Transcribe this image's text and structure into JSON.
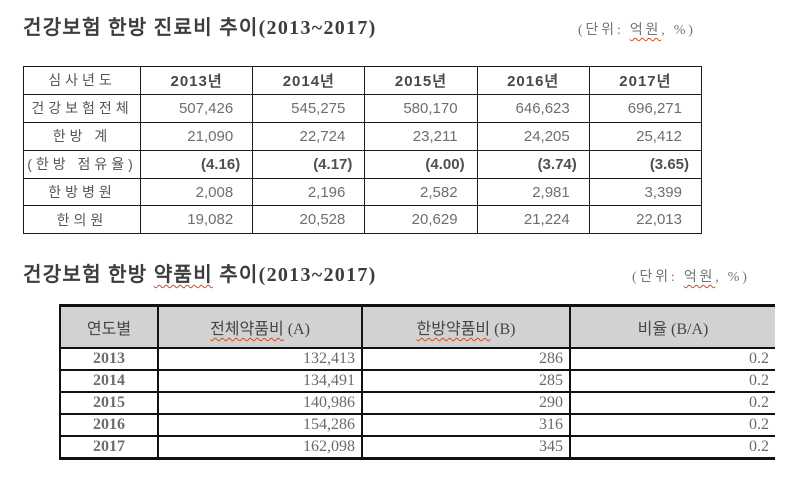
{
  "section1": {
    "title": "건강보험 한방 진료비 추이(2013~2017)",
    "unit_note": {
      "pre": "(단위: ",
      "wavy": "억원",
      "post": ", %)"
    }
  },
  "section2": {
    "title": {
      "pre": "건강보험 한방 ",
      "wavy": "약품비",
      "post": " 추이(2013~2017)"
    },
    "unit_note": {
      "pre": "(단위: ",
      "wavy": "억원",
      "post": ", %)"
    }
  },
  "table1": {
    "header": [
      "심사년도",
      "2013년",
      "2014년",
      "2015년",
      "2016년",
      "2017년"
    ],
    "rows": [
      {
        "label": "건강보험전체",
        "bold": false,
        "values": [
          "507,426",
          "545,275",
          "580,170",
          "646,623",
          "696,271"
        ]
      },
      {
        "label": "한방 계",
        "bold": false,
        "values": [
          "21,090",
          "22,724",
          "23,211",
          "24,205",
          "25,412"
        ]
      },
      {
        "label": "(한방 점유율)",
        "bold": true,
        "values": [
          "(4.16)",
          "(4.17)",
          "(4.00)",
          "(3.74)",
          "(3.65)"
        ]
      },
      {
        "label": "한방병원",
        "bold": false,
        "values": [
          "2,008",
          "2,196",
          "2,582",
          "2,981",
          "3,399"
        ]
      },
      {
        "label": "한의원",
        "bold": false,
        "values": [
          "19,082",
          "20,528",
          "20,629",
          "21,224",
          "22,013"
        ]
      }
    ]
  },
  "table2": {
    "header": [
      {
        "text": "연도별"
      },
      {
        "wavy": "전체약품비",
        "post": " (A)"
      },
      {
        "wavy": "한방약품비",
        "post": " (B)"
      },
      {
        "text": "비율 (B/A)"
      }
    ],
    "rows": [
      [
        "2013",
        "132,413",
        "286",
        "0.2"
      ],
      [
        "2014",
        "134,491",
        "285",
        "0.2"
      ],
      [
        "2015",
        "140,986",
        "290",
        "0.2"
      ],
      [
        "2016",
        "154,286",
        "316",
        "0.2"
      ],
      [
        "2017",
        "162,098",
        "345",
        "0.2"
      ]
    ]
  },
  "colors": {
    "wavy_underline": "#c8511f",
    "table_border": "#1c1c1c",
    "header_bg": "#d2d2d2"
  }
}
